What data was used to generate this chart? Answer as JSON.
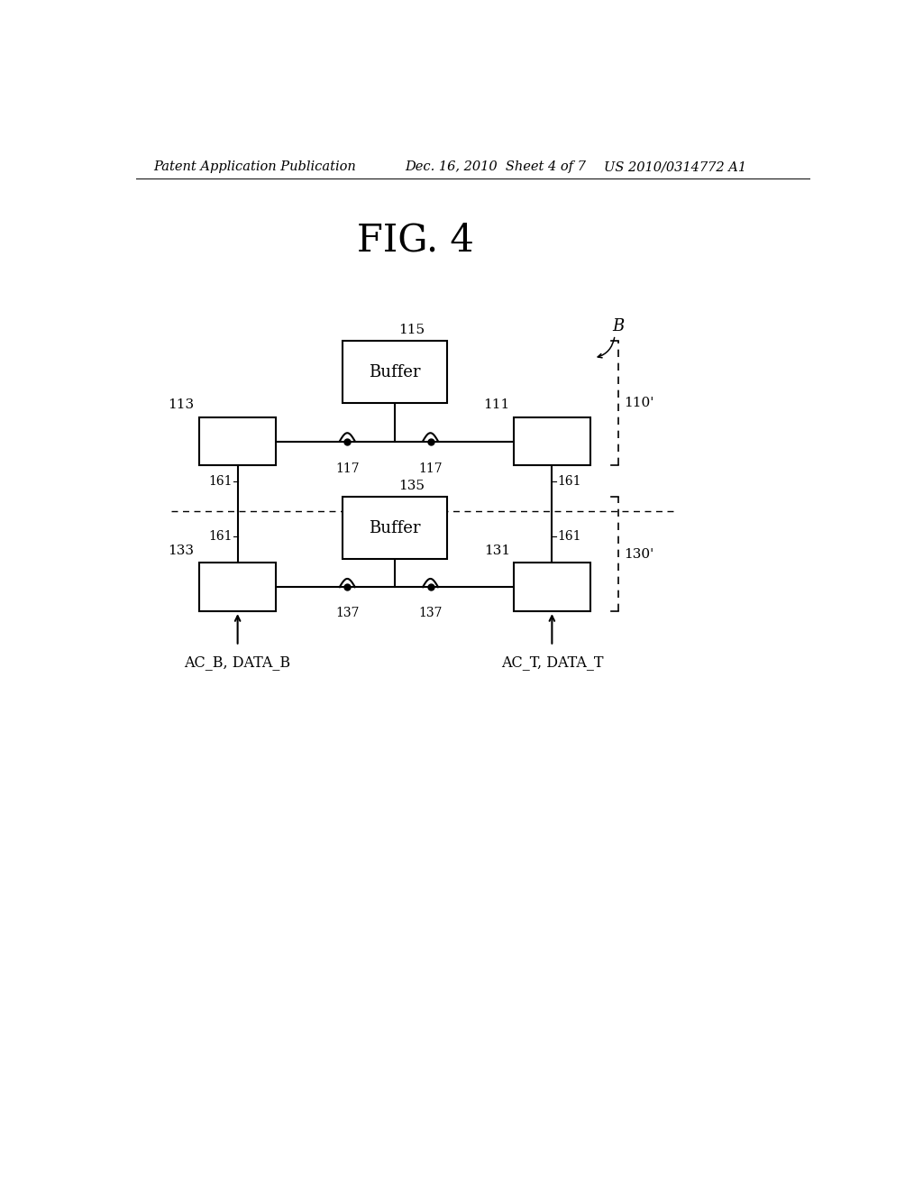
{
  "title": "FIG. 4",
  "header_left": "Patent Application Publication",
  "header_mid": "Dec. 16, 2010  Sheet 4 of 7",
  "header_right": "US 2010/0314772 A1",
  "bg_color": "#ffffff",
  "line_color": "#000000",
  "top_buffer_label": "Buffer",
  "top_buffer_num": "115",
  "top_left_box_num": "113",
  "top_right_box_num": "111",
  "top_bracket_num": "110'",
  "top_via_nums": [
    "117",
    "117"
  ],
  "bot_buffer_label": "Buffer",
  "bot_buffer_num": "135",
  "bot_left_box_num": "133",
  "bot_right_box_num": "131",
  "bot_bracket_num": "130'",
  "bot_via_nums": [
    "137",
    "137"
  ],
  "left_tsv_num": "161",
  "right_tsv_num": "161",
  "bot_left_label": "AC_B, DATA_B",
  "bot_right_label": "AC_T, DATA_T",
  "b_label": "B"
}
